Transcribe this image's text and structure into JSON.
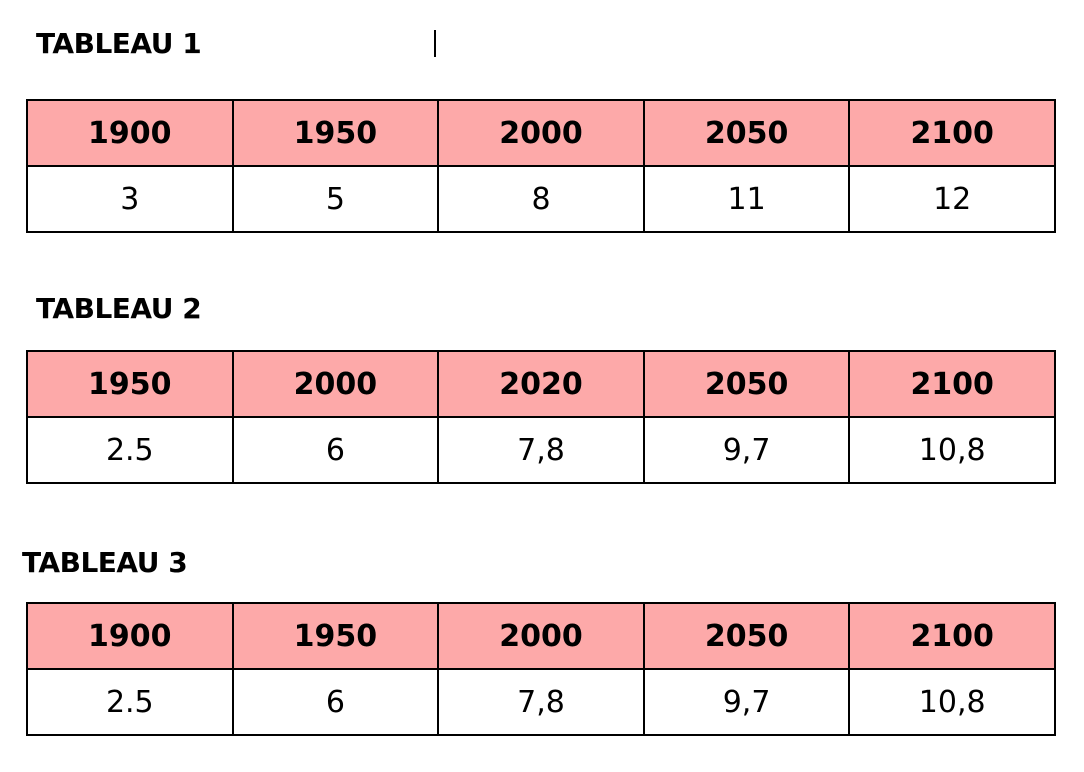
{
  "tables": [
    {
      "title": "TABLEAU 1",
      "header": [
        "1900",
        "1950",
        "2000",
        "2050",
        "2100"
      ],
      "row": [
        "3",
        "5",
        "8",
        "11",
        "12"
      ]
    },
    {
      "title": "TABLEAU 2",
      "header": [
        "1950",
        "2000",
        "2020",
        "2050",
        "2100"
      ],
      "row": [
        "2.5",
        "6",
        "7,8",
        "9,7",
        "10,8"
      ]
    },
    {
      "title": "TABLEAU 3",
      "header": [
        "1900",
        "1950",
        "2000",
        "2050",
        "2100"
      ],
      "row": [
        "2.5",
        "6",
        "7,8",
        "9,7",
        "10,8"
      ]
    }
  ]
}
